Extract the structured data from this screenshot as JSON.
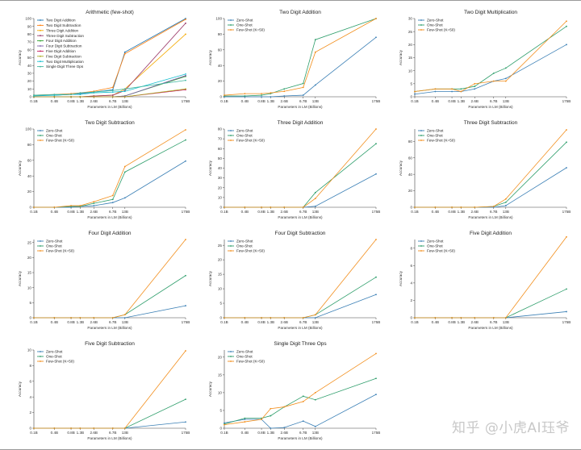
{
  "x_ticks": [
    "0.1B",
    "0.4B",
    "0.8B",
    "1.3B",
    "2.6B",
    "6.7B",
    "13B",
    "175B"
  ],
  "xlabel": "Parameters in LM (Billions)",
  "ylabel": "Accuracy",
  "colors": {
    "zero": "#3a7fb5",
    "one": "#2e9e6b",
    "few": "#f28e1c",
    "arith": [
      "#1f77b4",
      "#ff7f0e",
      "#f4a900",
      "#9c3b6a",
      "#2ca02c",
      "#7b5ea7",
      "#c2185b",
      "#aaaa22",
      "#17becf",
      "#3fb7a0"
    ]
  },
  "watermark": "知乎 @小虎AI珏爷",
  "chart_data": [
    {
      "type": "line",
      "title": "Arithmetic (few-shot)",
      "ylim": [
        0,
        100
      ],
      "yticks": [
        0,
        10,
        20,
        30,
        40,
        50,
        60,
        70,
        80,
        90,
        100
      ],
      "series": [
        {
          "name": "Two Digit Addition",
          "values": [
            2,
            2,
            3,
            4,
            6,
            9,
            57,
            100
          ]
        },
        {
          "name": "Two Digit Subtraction",
          "values": [
            2,
            3,
            4,
            5,
            7,
            12,
            55,
            99
          ]
        },
        {
          "name": "Three Digit Addition",
          "values": [
            0,
            0,
            0,
            0,
            1,
            2,
            10,
            80
          ]
        },
        {
          "name": "Three Digit Subtraction",
          "values": [
            0,
            0,
            0,
            0,
            1,
            2,
            8,
            94
          ]
        },
        {
          "name": "Four Digit Addition",
          "values": [
            0,
            0,
            0,
            0,
            0,
            0,
            1,
            26
          ]
        },
        {
          "name": "Four Digit Subtraction",
          "values": [
            0,
            0,
            0,
            0,
            0,
            0,
            1,
            27
          ]
        },
        {
          "name": "Five Digit Addition",
          "values": [
            0,
            0,
            0,
            0,
            0,
            0,
            0,
            9
          ]
        },
        {
          "name": "Five Digit Subtraction",
          "values": [
            0,
            0,
            0,
            0,
            0,
            0,
            0,
            10
          ]
        },
        {
          "name": "Two Digit Multiplication",
          "values": [
            1,
            2,
            3,
            3,
            5,
            6,
            7,
            29
          ]
        },
        {
          "name": "Single Digit Three Ops",
          "values": [
            2,
            3,
            3,
            5,
            6,
            8,
            10,
            21
          ]
        }
      ]
    },
    {
      "type": "line",
      "title": "Two Digit Addition",
      "ylim": [
        0,
        100
      ],
      "yticks": [
        0,
        20,
        40,
        60,
        80,
        100
      ],
      "series": [
        {
          "name": "Zero-Shot",
          "values": [
            0,
            0,
            0,
            0,
            1,
            2,
            15,
            76
          ]
        },
        {
          "name": "One-Shot",
          "values": [
            1,
            1,
            2,
            4,
            10,
            17,
            73,
            100
          ]
        },
        {
          "name": "Few-Shot (K=50)",
          "values": [
            2,
            4,
            4,
            5,
            7,
            12,
            57,
            100
          ]
        }
      ]
    },
    {
      "type": "line",
      "title": "Two Digit Multiplication",
      "ylim": [
        0,
        30
      ],
      "yticks": [
        0,
        5,
        10,
        15,
        20,
        25,
        30
      ],
      "series": [
        {
          "name": "Zero-Shot",
          "values": [
            1,
            2,
            2,
            2,
            3,
            6,
            7,
            20
          ]
        },
        {
          "name": "One-Shot",
          "values": [
            2,
            3,
            3,
            3,
            4,
            9,
            11,
            27
          ]
        },
        {
          "name": "Few-Shot (K=50)",
          "values": [
            2,
            3,
            3,
            2,
            5,
            6,
            6,
            29
          ]
        }
      ]
    },
    {
      "type": "line",
      "title": "Two Digit Subtraction",
      "ylim": [
        0,
        100
      ],
      "yticks": [
        0,
        20,
        40,
        60,
        80,
        100
      ],
      "series": [
        {
          "name": "Zero-Shot",
          "values": [
            0,
            0,
            0,
            1,
            2,
            6,
            12,
            59
          ]
        },
        {
          "name": "One-Shot",
          "values": [
            0,
            0,
            1,
            1,
            5,
            10,
            45,
            86
          ]
        },
        {
          "name": "Few-Shot (K=50)",
          "values": [
            0,
            0,
            2,
            2,
            7,
            15,
            52,
            99
          ]
        }
      ]
    },
    {
      "type": "line",
      "title": "Three Digit Addition",
      "ylim": [
        0,
        80
      ],
      "yticks": [
        0,
        10,
        20,
        30,
        40,
        50,
        60,
        70,
        80
      ],
      "series": [
        {
          "name": "Zero-Shot",
          "values": [
            0,
            0,
            0,
            0,
            0,
            0,
            1,
            34
          ]
        },
        {
          "name": "One-Shot",
          "values": [
            0,
            0,
            0,
            0,
            0,
            0,
            15,
            65
          ]
        },
        {
          "name": "Few-Shot (K=50)",
          "values": [
            0,
            0,
            0,
            0,
            0,
            0,
            9,
            80
          ]
        }
      ]
    },
    {
      "type": "line",
      "title": "Three Digit Subtraction",
      "ylim": [
        0,
        95
      ],
      "yticks": [
        0,
        20,
        40,
        60,
        80
      ],
      "series": [
        {
          "name": "Zero-Shot",
          "values": [
            0,
            0,
            0,
            0,
            0,
            0,
            2,
            48
          ]
        },
        {
          "name": "One-Shot",
          "values": [
            0,
            0,
            0,
            0,
            0,
            1,
            6,
            79
          ]
        },
        {
          "name": "Few-Shot (K=50)",
          "values": [
            0,
            0,
            0,
            0,
            0,
            1,
            10,
            94
          ]
        }
      ]
    },
    {
      "type": "line",
      "title": "Four Digit Addition",
      "ylim": [
        0,
        26
      ],
      "yticks": [
        0,
        5,
        10,
        15,
        20,
        25
      ],
      "series": [
        {
          "name": "Zero-Shot",
          "values": [
            0,
            0,
            0,
            0,
            0,
            0,
            0,
            4
          ]
        },
        {
          "name": "One-Shot",
          "values": [
            0,
            0,
            0,
            0,
            0,
            0,
            1,
            14
          ]
        },
        {
          "name": "Few-Shot (K=50)",
          "values": [
            0,
            0,
            0,
            0,
            0,
            0,
            1,
            26
          ]
        }
      ]
    },
    {
      "type": "line",
      "title": "Four Digit Subtraction",
      "ylim": [
        0,
        27
      ],
      "yticks": [
        0,
        5,
        10,
        15,
        20,
        25
      ],
      "series": [
        {
          "name": "Zero-Shot",
          "values": [
            0,
            0,
            0,
            0,
            0,
            0,
            0,
            8
          ]
        },
        {
          "name": "One-Shot",
          "values": [
            0,
            0,
            0,
            0,
            0,
            0,
            1,
            14
          ]
        },
        {
          "name": "Few-Shot (K=50)",
          "values": [
            0,
            0,
            0,
            0,
            0,
            0,
            1,
            27
          ]
        }
      ]
    },
    {
      "type": "line",
      "title": "Five Digit Addition",
      "ylim": [
        0,
        9
      ],
      "yticks": [
        0,
        2,
        4,
        6,
        8
      ],
      "series": [
        {
          "name": "Zero-Shot",
          "values": [
            0,
            0,
            0,
            0,
            0,
            0,
            0,
            0.7
          ]
        },
        {
          "name": "One-Shot",
          "values": [
            0,
            0,
            0,
            0,
            0,
            0,
            0,
            3.3
          ]
        },
        {
          "name": "Few-Shot (K=50)",
          "values": [
            0,
            0,
            0,
            0,
            0,
            0,
            0,
            9.3
          ]
        }
      ]
    },
    {
      "type": "line",
      "title": "Five Digit Subtraction",
      "ylim": [
        0,
        10
      ],
      "yticks": [
        0,
        2,
        4,
        6,
        8,
        10
      ],
      "series": [
        {
          "name": "Zero-Shot",
          "values": [
            0,
            0,
            0,
            0,
            0,
            0,
            0,
            0.8
          ]
        },
        {
          "name": "One-Shot",
          "values": [
            0,
            0,
            0,
            0,
            0,
            0,
            0,
            3.7
          ]
        },
        {
          "name": "Few-Shot (K=50)",
          "values": [
            0,
            0,
            0,
            0,
            0,
            0,
            0,
            9.9
          ]
        }
      ]
    },
    {
      "type": "line",
      "title": "Single Digit Three Ops",
      "ylim": [
        0,
        22
      ],
      "yticks": [
        0,
        5,
        10,
        15,
        20
      ],
      "series": [
        {
          "name": "Zero-Shot",
          "values": [
            1.5,
            2.5,
            2.5,
            0,
            0.2,
            2,
            0.5,
            9.5
          ]
        },
        {
          "name": "One-Shot",
          "values": [
            1.2,
            2.8,
            2.8,
            3.5,
            6,
            9,
            8,
            14
          ]
        },
        {
          "name": "Few-Shot (K=50)",
          "values": [
            1,
            1.8,
            2.5,
            5.5,
            6,
            7.5,
            10,
            21
          ]
        }
      ]
    }
  ]
}
